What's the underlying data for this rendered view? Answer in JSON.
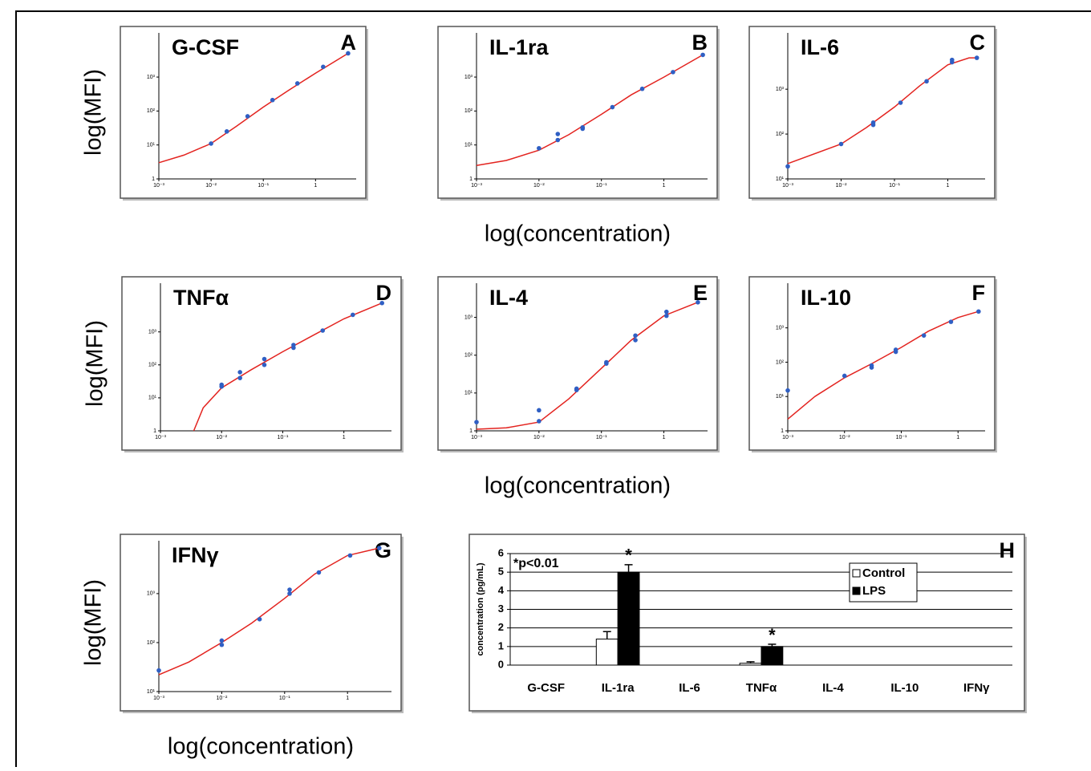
{
  "chart_data": [
    {
      "type": "scatter",
      "title": "G-CSF",
      "panel": "A",
      "ylabel": "log(MFI)",
      "xscale": "log",
      "yscale": "log",
      "xlim": [
        0.001,
        6
      ],
      "ylim": [
        1,
        20000
      ],
      "xticks": [
        {
          "value": 0.001,
          "label": "10⁻³"
        },
        {
          "value": 0.01,
          "label": "10⁻²"
        },
        {
          "value": 0.1,
          "label": "10⁻¹"
        },
        1
      ],
      "yticks": [
        1,
        {
          "value": 10,
          "label": "10¹"
        },
        {
          "value": 100,
          "label": "10²"
        },
        {
          "value": 1000,
          "label": "10³"
        }
      ],
      "point_color": "#2f5fc4",
      "curve_color": "#e3231f",
      "points": {
        "x": [
          0.01,
          0.02,
          0.05,
          0.15,
          0.45,
          1.4,
          4.2
        ],
        "y": [
          11,
          25,
          70,
          210,
          650,
          2000,
          5000
        ]
      },
      "curve": {
        "x": [
          0.001,
          0.003,
          0.01,
          0.03,
          0.1,
          0.3,
          1,
          4.2
        ],
        "y": [
          3,
          5,
          11,
          35,
          130,
          400,
          1300,
          5000
        ]
      }
    },
    {
      "type": "scatter",
      "title": "IL-1ra",
      "panel": "B",
      "xlabel": "log(concentration)",
      "xscale": "log",
      "yscale": "log",
      "xlim": [
        0.001,
        5
      ],
      "ylim": [
        1,
        20000
      ],
      "xticks": [
        {
          "value": 0.001,
          "label": "10⁻³"
        },
        {
          "value": 0.01,
          "label": "10⁻²"
        },
        {
          "value": 0.1,
          "label": "10⁻¹"
        },
        1
      ],
      "yticks": [
        1,
        {
          "value": 10,
          "label": "10¹"
        },
        {
          "value": 100,
          "label": "10²"
        },
        {
          "value": 1000,
          "label": "10³"
        }
      ],
      "point_color": "#2f5fc4",
      "curve_color": "#e3231f",
      "points": {
        "x": [
          0.01,
          0.02,
          0.02,
          0.05,
          0.05,
          0.15,
          0.45,
          1.4,
          4.2
        ],
        "y": [
          8,
          14,
          21,
          30,
          33,
          130,
          450,
          1400,
          4500
        ]
      },
      "curve": {
        "x": [
          0.001,
          0.003,
          0.01,
          0.03,
          0.1,
          0.3,
          1,
          4.2
        ],
        "y": [
          2.5,
          3.5,
          7,
          20,
          80,
          300,
          1000,
          4500
        ]
      }
    },
    {
      "type": "scatter",
      "title": "IL-6",
      "panel": "C",
      "xscale": "log",
      "yscale": "log",
      "xlim": [
        0.001,
        5
      ],
      "ylim": [
        10,
        18000
      ],
      "xticks": [
        {
          "value": 0.001,
          "label": "10⁻³"
        },
        {
          "value": 0.01,
          "label": "10⁻²"
        },
        {
          "value": 0.1,
          "label": "10⁻¹"
        },
        1
      ],
      "yticks": [
        {
          "value": 10,
          "label": "10¹"
        },
        {
          "value": 100,
          "label": "10²"
        },
        {
          "value": 1000,
          "label": "10³"
        }
      ],
      "point_color": "#2f5fc4",
      "curve_color": "#e3231f",
      "points": {
        "x": [
          0.001,
          0.01,
          0.04,
          0.04,
          0.13,
          0.4,
          1.2,
          1.2,
          3.5
        ],
        "y": [
          19,
          60,
          160,
          180,
          500,
          1500,
          4000,
          4500,
          5000
        ]
      },
      "curve": {
        "x": [
          0.001,
          0.01,
          0.03,
          0.1,
          0.3,
          1,
          2.5,
          3.5
        ],
        "y": [
          22,
          60,
          140,
          400,
          1200,
          3500,
          5000,
          5000
        ]
      }
    },
    {
      "type": "scatter",
      "title": "TNFα",
      "panel": "D",
      "ylabel": "log(MFI)",
      "xscale": "log",
      "yscale": "log",
      "xlim": [
        0.001,
        6
      ],
      "ylim": [
        1,
        30000
      ],
      "xticks": [
        {
          "value": 0.001,
          "label": "10⁻³"
        },
        {
          "value": 0.01,
          "label": "10⁻²"
        },
        {
          "value": 0.1,
          "label": "10⁻¹"
        },
        1
      ],
      "yticks": [
        1,
        {
          "value": 10,
          "label": "10¹"
        },
        {
          "value": 100,
          "label": "10²"
        },
        {
          "value": 1000,
          "label": "10³"
        }
      ],
      "point_color": "#2f5fc4",
      "curve_color": "#e3231f",
      "points": {
        "x": [
          0.01,
          0.01,
          0.02,
          0.02,
          0.05,
          0.05,
          0.15,
          0.15,
          0.45,
          1.4,
          4.2
        ],
        "y": [
          22,
          25,
          40,
          60,
          100,
          150,
          330,
          400,
          1100,
          3300,
          7500
        ]
      },
      "curve": {
        "x": [
          0.0035,
          0.005,
          0.01,
          0.03,
          0.1,
          0.3,
          1,
          4.2
        ],
        "y": [
          1,
          5,
          20,
          70,
          250,
          750,
          2500,
          7500
        ]
      }
    },
    {
      "type": "scatter",
      "title": "IL-4",
      "panel": "E",
      "xlabel": "log(concentration)",
      "xscale": "log",
      "yscale": "log",
      "xlim": [
        0.001,
        5
      ],
      "ylim": [
        1,
        8000
      ],
      "xticks": [
        {
          "value": 0.001,
          "label": "10⁻³"
        },
        {
          "value": 0.01,
          "label": "10⁻²"
        },
        {
          "value": 0.1,
          "label": "10⁻¹"
        },
        1
      ],
      "yticks": [
        1,
        {
          "value": 10,
          "label": "10¹"
        },
        {
          "value": 100,
          "label": "10²"
        },
        {
          "value": 1000,
          "label": "10³"
        }
      ],
      "point_color": "#2f5fc4",
      "curve_color": "#e3231f",
      "points": {
        "x": [
          0.001,
          0.01,
          0.01,
          0.04,
          0.04,
          0.12,
          0.12,
          0.35,
          0.35,
          1.1,
          1.1,
          3.5
        ],
        "y": [
          1.7,
          1.8,
          3.5,
          12,
          13,
          60,
          65,
          250,
          330,
          1100,
          1400,
          2500
        ]
      },
      "curve": {
        "x": [
          0.001,
          0.003,
          0.01,
          0.03,
          0.1,
          0.3,
          1,
          3.5
        ],
        "y": [
          1.1,
          1.2,
          1.7,
          7,
          45,
          250,
          1100,
          2500
        ]
      }
    },
    {
      "type": "scatter",
      "title": "IL-10",
      "panel": "F",
      "xscale": "log",
      "yscale": "log",
      "xlim": [
        0.001,
        3
      ],
      "ylim": [
        1,
        20000
      ],
      "xticks": [
        {
          "value": 0.001,
          "label": "10⁻³"
        },
        {
          "value": 0.01,
          "label": "10⁻²"
        },
        {
          "value": 0.1,
          "label": "10⁻¹"
        },
        1
      ],
      "yticks": [
        1,
        {
          "value": 10,
          "label": "10¹"
        },
        {
          "value": 100,
          "label": "10²"
        },
        {
          "value": 1000,
          "label": "10³"
        }
      ],
      "point_color": "#2f5fc4",
      "curve_color": "#e3231f",
      "points": {
        "x": [
          0.001,
          0.01,
          0.03,
          0.03,
          0.08,
          0.08,
          0.25,
          0.75,
          2.3
        ],
        "y": [
          15,
          40,
          70,
          80,
          200,
          230,
          600,
          1500,
          3000
        ]
      },
      "curve": {
        "x": [
          0.001,
          0.003,
          0.01,
          0.03,
          0.1,
          0.3,
          1,
          2.3
        ],
        "y": [
          2.2,
          10,
          35,
          90,
          270,
          800,
          2000,
          3000
        ]
      }
    },
    {
      "type": "scatter",
      "title": "IFNγ",
      "panel": "G",
      "ylabel": "log(MFI)",
      "xlabel": "log(concentration)",
      "xscale": "log",
      "yscale": "log",
      "xlim": [
        0.001,
        5
      ],
      "ylim": [
        10,
        12000
      ],
      "xticks": [
        {
          "value": 0.001,
          "label": "10⁻³"
        },
        {
          "value": 0.01,
          "label": "10⁻²"
        },
        {
          "value": 0.1,
          "label": "10⁻¹"
        },
        1
      ],
      "yticks": [
        {
          "value": 10,
          "label": "10¹"
        },
        {
          "value": 100,
          "label": "10²"
        },
        {
          "value": 1000,
          "label": "10³"
        }
      ],
      "point_color": "#2f5fc4",
      "curve_color": "#e3231f",
      "points": {
        "x": [
          0.001,
          0.01,
          0.01,
          0.04,
          0.12,
          0.12,
          0.35,
          1.1,
          3.2
        ],
        "y": [
          27,
          90,
          110,
          300,
          1000,
          1200,
          2700,
          6000,
          8500
        ]
      },
      "curve": {
        "x": [
          0.001,
          0.003,
          0.01,
          0.03,
          0.1,
          0.3,
          1,
          3.2
        ],
        "y": [
          22,
          40,
          100,
          250,
          800,
          2500,
          6000,
          8500
        ]
      }
    },
    {
      "type": "bar",
      "panel": "H",
      "ylabel": "concentration (pg/mL)",
      "categories": [
        "G-CSF",
        "IL-1ra",
        "IL-6",
        "TNFα",
        "IL-4",
        "IL-10",
        "IFNγ"
      ],
      "series": [
        {
          "name": "Control",
          "color": "#ffffff",
          "values": [
            0,
            1.4,
            0,
            0.1,
            0,
            0,
            0
          ],
          "errors": [
            null,
            0.4,
            null,
            0.08,
            null,
            null,
            null
          ]
        },
        {
          "name": "LPS",
          "color": "#000000",
          "values": [
            0,
            5,
            0,
            1,
            0,
            0,
            0
          ],
          "errors": [
            null,
            0.4,
            null,
            0.12,
            null,
            null,
            null
          ]
        }
      ],
      "ylim": [
        0,
        6
      ],
      "yticks": [
        0,
        1,
        2,
        3,
        4,
        5,
        6
      ],
      "grid": true,
      "legend": "top-right",
      "annotations": [
        "*p<0.01",
        "*",
        "*"
      ]
    }
  ]
}
